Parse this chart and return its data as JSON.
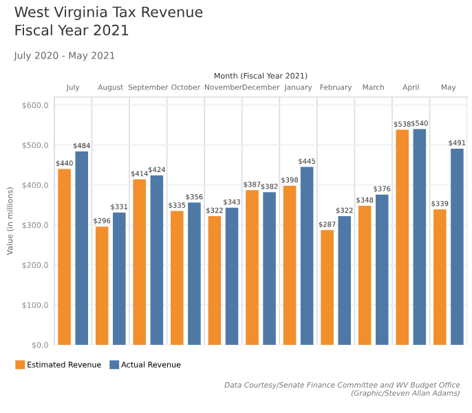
{
  "chart_data": {
    "type": "bar",
    "title": "West Virginia Tax Revenue\nFiscal Year 2021",
    "subtitle": "July 2020 - May 2021",
    "xlabel": "Month (Fiscal Year 2021)",
    "ylabel": "Value (in millions)",
    "categories": [
      "July",
      "August",
      "September",
      "October",
      "November",
      "December",
      "January",
      "February",
      "March",
      "April",
      "May"
    ],
    "series": [
      {
        "name": "Estimated Revenue",
        "color": "#f28e2b",
        "values": [
          440,
          296,
          414,
          335,
          322,
          387,
          398,
          287,
          348,
          538,
          339
        ],
        "value_labels": [
          "$440",
          "$296",
          "$414",
          "$335",
          "$322",
          "$387",
          "$398",
          "$287",
          "$348",
          "$538",
          "$339"
        ]
      },
      {
        "name": "Actual Revenue",
        "color": "#4e79a7",
        "values": [
          484,
          331,
          424,
          356,
          343,
          382,
          445,
          322,
          376,
          540,
          491
        ],
        "value_labels": [
          "$484",
          "$331",
          "$424",
          "$356",
          "$343",
          "$382",
          "$445",
          "$322",
          "$376",
          "$540",
          "$491"
        ]
      }
    ],
    "ylim": [
      0,
      620
    ],
    "yticks": [
      {
        "value": 0,
        "label": "$0.0"
      },
      {
        "value": 100,
        "label": "$100.0"
      },
      {
        "value": 200,
        "label": "$200.0"
      },
      {
        "value": 300,
        "label": "$300.0"
      },
      {
        "value": 400,
        "label": "$400.0"
      },
      {
        "value": 500,
        "label": "$500.0"
      },
      {
        "value": 600,
        "label": "$600.0"
      }
    ],
    "grid": true,
    "legend": "bottom left",
    "annotations": [
      "Data Courtesy/Senate Finance Committee and WV Budget Office\n(Graphic/Steven Allan Adams)"
    ]
  }
}
